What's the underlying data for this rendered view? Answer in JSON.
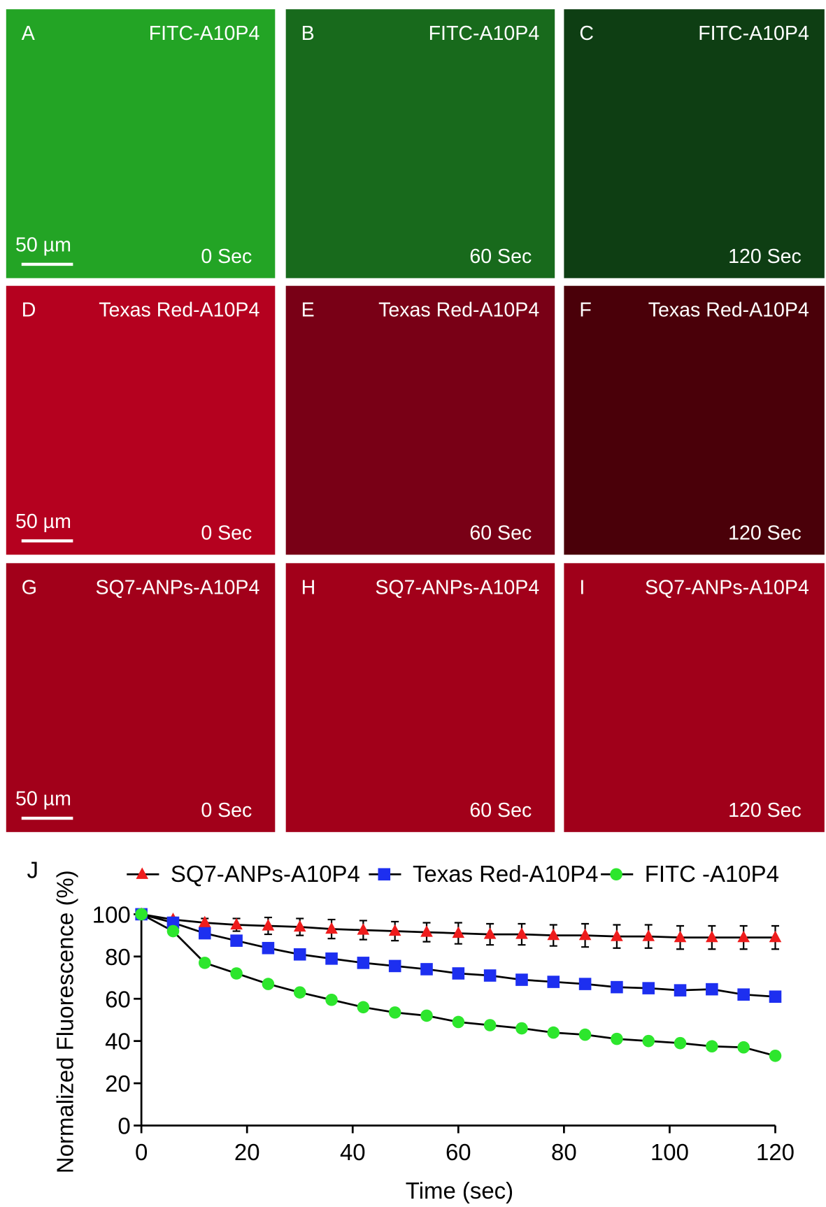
{
  "panels": [
    {
      "letter": "A",
      "label": "FITC-A10P4",
      "time": "0 Sec",
      "scale": "50 µm",
      "color": "#23a425"
    },
    {
      "letter": "B",
      "label": "FITC-A10P4",
      "time": "60 Sec",
      "color": "#186a1c"
    },
    {
      "letter": "C",
      "label": "FITC-A10P4",
      "time": "120 Sec",
      "color": "#0e3e13"
    },
    {
      "letter": "D",
      "label": "Texas Red-A10P4",
      "time": "0 Sec",
      "scale": "50 µm",
      "color": "#b5011f"
    },
    {
      "letter": "E",
      "label": "Texas Red-A10P4",
      "time": "60 Sec",
      "color": "#790016"
    },
    {
      "letter": "F",
      "label": "Texas Red-A10P4",
      "time": "120 Sec",
      "color": "#4a0009"
    },
    {
      "letter": "G",
      "label": "SQ7-ANPs-A10P4",
      "time": "0 Sec",
      "scale": "50 µm",
      "color": "#a2001a"
    },
    {
      "letter": "H",
      "label": "SQ7-ANPs-A10P4",
      "time": "60 Sec",
      "color": "#a2001a"
    },
    {
      "letter": "I",
      "label": "SQ7-ANPs-A10P4",
      "time": "120 Sec",
      "color": "#a0001a"
    }
  ],
  "chart_data": {
    "type": "line",
    "panel": "J",
    "xlabel": "Time (sec)",
    "ylabel": "Normalized Fluorescence (%)",
    "x": [
      0,
      6,
      12,
      18,
      24,
      30,
      36,
      42,
      48,
      54,
      60,
      66,
      72,
      78,
      84,
      90,
      96,
      102,
      108,
      114,
      120
    ],
    "xlim": [
      0,
      120
    ],
    "xticks": [
      0,
      20,
      40,
      60,
      80,
      100,
      120
    ],
    "ylim": [
      0,
      100
    ],
    "yticks": [
      0,
      20,
      40,
      60,
      80,
      100
    ],
    "series": [
      {
        "name": "SQ7-ANPs-A10P4",
        "color": "#ee1c1c",
        "marker": "triangle",
        "values": [
          100,
          97.5,
          96,
          95,
          94.5,
          94,
          93,
          92.5,
          92,
          91.5,
          91,
          90.5,
          90.5,
          90,
          90,
          89.5,
          89.5,
          89,
          89,
          89,
          89
        ],
        "errors": [
          0,
          1,
          2,
          3,
          4,
          4,
          4.5,
          4.5,
          4.5,
          4.5,
          5,
          5,
          5,
          5,
          5.5,
          5.5,
          5.5,
          5.5,
          5.5,
          5.5,
          5.5
        ]
      },
      {
        "name": "Texas Red-A10P4",
        "color": "#1d2ff0",
        "marker": "square",
        "values": [
          100,
          96,
          91,
          87.5,
          84,
          81,
          79,
          77,
          75.5,
          74,
          72,
          71,
          69,
          68,
          67,
          65.5,
          65,
          64,
          64.5,
          62,
          61
        ]
      },
      {
        "name": "FITC -A10P4",
        "color": "#2de62d",
        "marker": "circle",
        "values": [
          100,
          92,
          77,
          72,
          67,
          63,
          59.5,
          56,
          53.5,
          52,
          49,
          47.5,
          46,
          44,
          43,
          41,
          40,
          39,
          37.5,
          37,
          33
        ]
      }
    ]
  }
}
